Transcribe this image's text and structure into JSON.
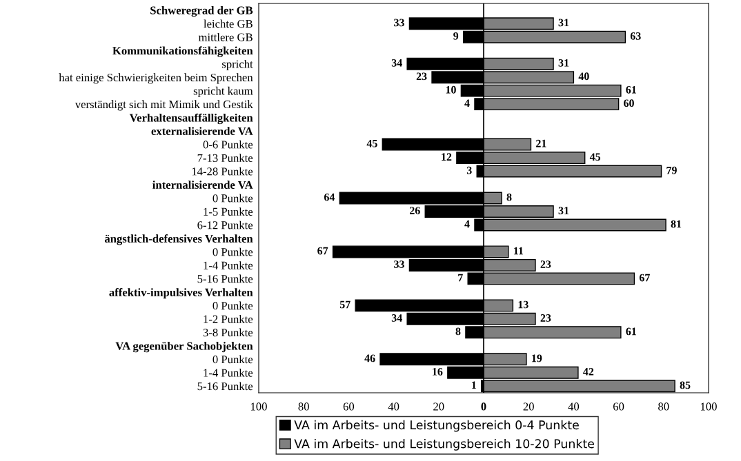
{
  "chart_data": {
    "type": "bar",
    "orientation": "horizontal",
    "categories": [
      "Schweregrad der GB",
      "leichte GB",
      "mittlere GB",
      "Kommunikationsfähigkeiten",
      "spricht",
      "hat einige Schwierigkeiten beim Sprechen",
      "spricht kaum",
      "verständigt sich mit Mimik und Gestik",
      "Verhaltensauffälligkeiten",
      "externalisierende VA",
      "0-6 Punkte",
      "7-13 Punkte",
      "14-28 Punkte",
      "internalisierende VA",
      "0 Punkte",
      "1-5 Punkte",
      "6-12 Punkte",
      "ängstlich-defensives Verhalten",
      "0 Punkte",
      "1-4 Punkte",
      "5-16 Punkte",
      "affektiv-impulsives Verhalten",
      "0 Punkte",
      "1-2 Punkte",
      "3-8 Punkte",
      "VA gegenüber Sachobjekten",
      "0 Punkte",
      "1-4 Punkte",
      "5-16 Punkte"
    ],
    "series": [
      {
        "name": "VA im Arbeits- und Leistungsbereich 0-4 Punkte",
        "color": "#000000",
        "values": [
          null,
          33,
          9,
          null,
          34,
          23,
          10,
          4,
          null,
          null,
          45,
          12,
          3,
          null,
          64,
          26,
          4,
          null,
          67,
          33,
          7,
          null,
          57,
          34,
          8,
          null,
          46,
          16,
          1
        ],
        "base": [
          null,
          -33,
          -9,
          null,
          -34,
          -23,
          -10,
          -4,
          null,
          null,
          -45,
          -12,
          -3,
          null,
          -64,
          -26,
          -4,
          null,
          -67,
          -33,
          -7,
          null,
          -57,
          -34,
          -8,
          null,
          -46,
          -16,
          -1
        ]
      },
      {
        "name": "VA im Arbeits- und Leistungsbereich 10-20 Punkte",
        "color": "#808080",
        "values": [
          null,
          31,
          63,
          null,
          31,
          40,
          61,
          60,
          null,
          null,
          21,
          45,
          79,
          null,
          8,
          31,
          81,
          null,
          11,
          23,
          67,
          null,
          13,
          23,
          61,
          null,
          19,
          42,
          85
        ]
      }
    ],
    "data_labels": true,
    "xlim": [
      -100,
      100
    ],
    "xticks": [
      {
        "value": -100,
        "label": "100"
      },
      {
        "value": -80,
        "label": "80"
      },
      {
        "value": -60,
        "label": "60"
      },
      {
        "value": -40,
        "label": "40"
      },
      {
        "value": -20,
        "label": "20"
      },
      0,
      20,
      40,
      60,
      80,
      100
    ],
    "ref_lines": [
      {
        "axis": "x",
        "value": 0,
        "color": "#000000"
      }
    ],
    "grid": false,
    "legend": "bottom"
  }
}
